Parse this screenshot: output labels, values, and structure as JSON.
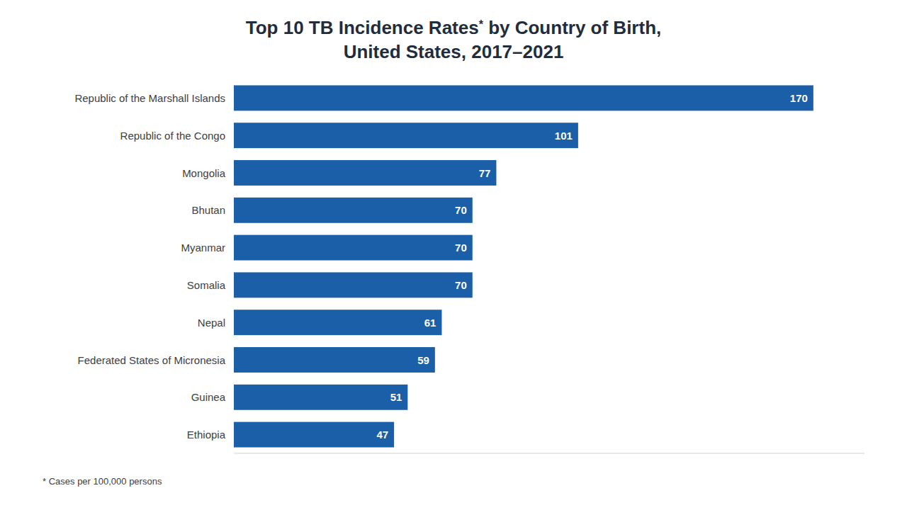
{
  "chart_data": {
    "type": "bar",
    "orientation": "horizontal",
    "title": "Top 10 TB Incidence Rates* by Country of Birth,",
    "subtitle": "United States, 2017–2021",
    "annotations": [
      "* Cases per 100,000 persons"
    ],
    "categories": [
      "Republic of the Marshall Islands",
      "Republic of the Congo",
      "Mongolia",
      "Bhutan",
      "Myanmar",
      "Somalia",
      "Nepal",
      "Federated States of Micronesia",
      "Guinea",
      "Ethiopia"
    ],
    "values": [
      170,
      101,
      77,
      70,
      70,
      70,
      61,
      59,
      51,
      47
    ],
    "color": "#1a5fa8",
    "xlim": [
      0,
      185
    ],
    "data_labels": true,
    "tick_labels": "y",
    "grid": false
  }
}
